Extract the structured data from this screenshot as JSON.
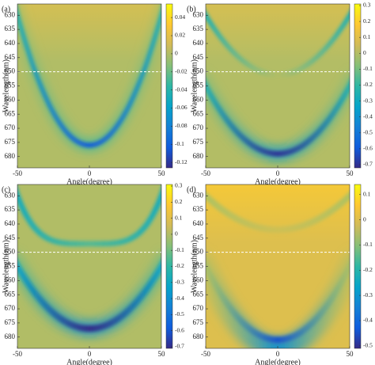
{
  "chart_data": [
    {
      "type": "heatmap",
      "label": "(a)",
      "xlabel": "Angle(degree)",
      "ylabel": "Wavelength(nm)",
      "colormap": "parula",
      "xlim": [
        -50,
        50
      ],
      "xticks": [
        -50,
        0,
        50
      ],
      "ylim": [
        626,
        684
      ],
      "y_reversed": true,
      "yticks": [
        630,
        635,
        640,
        645,
        650,
        655,
        660,
        665,
        670,
        675,
        680
      ],
      "reference_line": 650,
      "clim": [
        -0.126,
        0.055
      ],
      "cticks": [
        0.04,
        0.02,
        0,
        -0.02,
        -0.04,
        -0.06,
        -0.08,
        -0.1,
        -0.12
      ]
    },
    {
      "type": "heatmap",
      "label": "(b)",
      "xlabel": "Angle(degree)",
      "ylabel": "Wavelength(nm)",
      "colormap": "parula",
      "xlim": [
        -50,
        50
      ],
      "xticks": [
        -50,
        0,
        50
      ],
      "ylim": [
        626,
        684
      ],
      "y_reversed": true,
      "yticks": [
        630,
        635,
        640,
        645,
        650,
        655,
        660,
        665,
        670,
        675,
        680
      ],
      "reference_line": 650,
      "clim": [
        -0.72,
        0.31
      ],
      "cticks": [
        0.3,
        0.2,
        0.1,
        0,
        -0.1,
        -0.2,
        -0.3,
        -0.4,
        -0.5,
        -0.6,
        -0.7
      ]
    },
    {
      "type": "heatmap",
      "label": "(c)",
      "xlabel": "Angle(degree)",
      "ylabel": "Wavelength(nm)",
      "colormap": "parula",
      "xlim": [
        -50,
        50
      ],
      "xticks": [
        -50,
        0,
        50
      ],
      "ylim": [
        626,
        684
      ],
      "y_reversed": true,
      "yticks": [
        630,
        635,
        640,
        645,
        650,
        655,
        660,
        665,
        670,
        675,
        680
      ],
      "reference_line": 650,
      "clim": [
        -0.71,
        0.31
      ],
      "cticks": [
        0.3,
        0.2,
        0.1,
        0,
        -0.1,
        -0.2,
        -0.3,
        -0.4,
        -0.5,
        -0.6,
        -0.7
      ]
    },
    {
      "type": "heatmap",
      "label": "(d)",
      "xlabel": "Angle(degree)",
      "ylabel": "Wavelength(nm)",
      "colormap": "parula",
      "xlim": [
        -50,
        50
      ],
      "xticks": [
        -50,
        0,
        50
      ],
      "ylim": [
        626,
        684
      ],
      "y_reversed": true,
      "yticks": [
        630,
        635,
        640,
        645,
        650,
        655,
        660,
        665,
        670,
        675,
        680
      ],
      "reference_line": 650,
      "clim": [
        -0.51,
        0.14
      ],
      "cticks": [
        0.1,
        0,
        -0.1,
        -0.2,
        -0.3,
        -0.4,
        -0.5
      ]
    }
  ]
}
